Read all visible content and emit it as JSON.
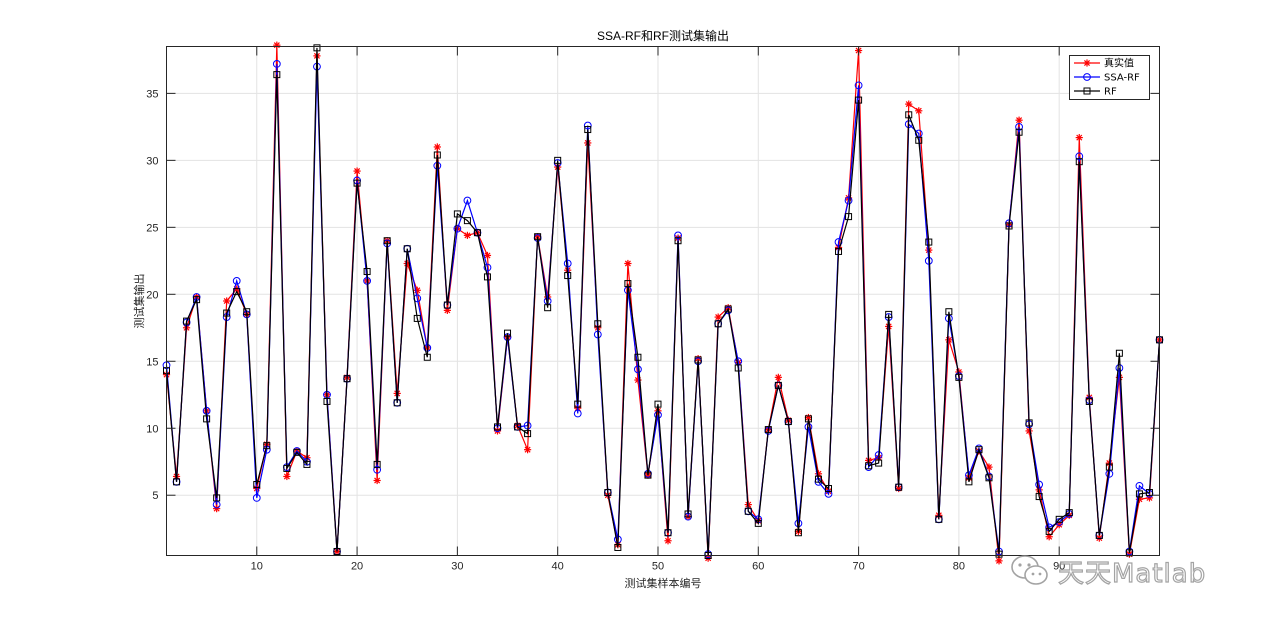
{
  "chart_data": {
    "type": "line",
    "title": "SSA-RF和RF测试集输出",
    "xlabel": "测试集样本编号",
    "ylabel": "测试集输出",
    "xlim": [
      1,
      100
    ],
    "ylim": [
      0.5,
      38.5
    ],
    "xticks": [
      10,
      20,
      30,
      40,
      50,
      60,
      70,
      80,
      90
    ],
    "yticks": [
      5,
      10,
      15,
      20,
      25,
      30,
      35
    ],
    "grid": true,
    "legend": "top-right",
    "x_start": 1,
    "series": [
      {
        "name": "真实值",
        "color": "#ff0000",
        "marker": "star",
        "values": [
          14,
          6.4,
          17.5,
          19.8,
          11.3,
          4,
          19.5,
          20.4,
          18.5,
          5.5,
          8.8,
          38.6,
          6.4,
          8.3,
          7.8,
          37.8,
          12.5,
          0.8,
          13.8,
          29.2,
          21,
          6.1,
          24,
          12.6,
          22.3,
          20.3,
          16,
          31,
          18.8,
          24.9,
          24.4,
          24.6,
          22.9,
          9.8,
          16.8,
          10.2,
          8.4,
          24.3,
          19.8,
          29.5,
          21.8,
          11.5,
          31.3,
          17.5,
          5,
          1.3,
          22.3,
          13.6,
          6.5,
          11.3,
          1.6,
          24.2,
          3.4,
          15.2,
          0.3,
          18.3,
          19,
          14.9,
          4.3,
          3.1,
          9.9,
          13.8,
          10.6,
          2.3,
          10.8,
          6.6,
          5.3,
          23.5,
          27.2,
          38.2,
          7.6,
          7.8,
          17.6,
          5.5,
          34.2,
          33.7,
          23.3,
          3.5,
          16.6,
          14.2,
          6.3,
          8.3,
          7.1,
          0.1,
          25.2,
          33,
          9.8,
          5.4,
          1.9,
          2.8,
          3.5,
          31.7,
          12.3,
          1.8,
          7.4,
          13.8,
          0.6,
          4.7,
          4.8,
          16.6
        ]
      },
      {
        "name": "SSA-RF",
        "color": "#0000ff",
        "marker": "circle",
        "values": [
          14.7,
          6,
          17.9,
          19.8,
          11.3,
          4.3,
          18.3,
          21,
          18.5,
          4.8,
          8.4,
          37.2,
          7.1,
          8.3,
          7.5,
          37,
          12.5,
          0.8,
          13.7,
          28.5,
          21,
          6.9,
          23.8,
          11.9,
          23.4,
          19.7,
          16,
          29.6,
          19.2,
          24.9,
          27,
          24.6,
          22,
          10,
          16.8,
          10.1,
          10.2,
          24.2,
          19.5,
          29.8,
          22.3,
          11.1,
          32.6,
          17,
          5.2,
          1.7,
          20.3,
          14.4,
          6.6,
          11,
          2.2,
          24.4,
          3.4,
          15,
          0.6,
          17.8,
          18.8,
          15,
          3.8,
          3.2,
          9.8,
          13.2,
          10.5,
          2.9,
          10.1,
          6,
          5.1,
          23.9,
          27,
          35.6,
          7.1,
          8,
          18.3,
          5.6,
          32.7,
          32,
          22.5,
          3.2,
          18.2,
          13.9,
          6.5,
          8.5,
          6.4,
          0.8,
          25.3,
          32.5,
          10.3,
          5.8,
          2.6,
          3,
          3.6,
          30.3,
          12.1,
          2,
          6.6,
          14.5,
          0.8,
          5.7,
          5.1,
          16.6
        ]
      },
      {
        "name": "RF",
        "color": "#000000",
        "marker": "square",
        "values": [
          14.3,
          6,
          18,
          19.6,
          10.7,
          4.8,
          18.6,
          20.2,
          18.7,
          5.8,
          8.7,
          36.4,
          7,
          8.2,
          7.3,
          38.4,
          12,
          0.8,
          13.7,
          28.3,
          21.7,
          7.3,
          24,
          11.9,
          23.4,
          18.2,
          15.3,
          30.4,
          19.2,
          26,
          25.5,
          24.6,
          21.3,
          10.1,
          17.1,
          10.1,
          9.6,
          24.3,
          19,
          30,
          21.4,
          11.8,
          32.3,
          17.8,
          5.2,
          1.1,
          20.8,
          15.3,
          6.5,
          11.8,
          2.2,
          24,
          3.6,
          15.1,
          0.5,
          17.8,
          18.9,
          14.5,
          3.8,
          2.9,
          9.9,
          13.2,
          10.5,
          2.2,
          10.7,
          6.2,
          5.5,
          23.2,
          25.8,
          34.5,
          7.2,
          7.4,
          18.5,
          5.6,
          33.4,
          31.5,
          23.9,
          3.2,
          18.7,
          13.8,
          6,
          8.4,
          6.3,
          0.6,
          25.1,
          32.1,
          10.4,
          4.9,
          2.3,
          3.2,
          3.7,
          29.9,
          12,
          2,
          7.1,
          15.6,
          0.7,
          5.1,
          5.2,
          16.6
        ]
      }
    ]
  },
  "watermark": {
    "text": "天天Matlab"
  }
}
